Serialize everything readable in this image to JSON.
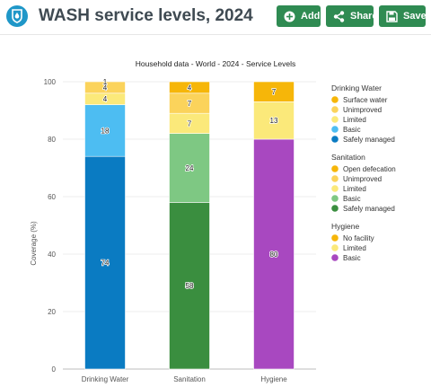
{
  "header": {
    "title": "WASH service levels, 2024",
    "icon": "drop-shield-icon",
    "buttons": [
      {
        "label": "Add",
        "icon": "plus-circle-icon"
      },
      {
        "label": "Share",
        "icon": "share-icon"
      },
      {
        "label": "Save",
        "icon": "floppy-disk-icon"
      }
    ]
  },
  "colors": {
    "brand": "#1f97c8",
    "button": "#2f8b52"
  },
  "chart_data": {
    "type": "bar",
    "stacked": true,
    "title": "Household data - World - 2024 - Service Levels",
    "ylabel": "Coverage (%)",
    "xlabel": "",
    "ylim": [
      0,
      100
    ],
    "yticks": [
      0,
      20,
      40,
      60,
      80,
      100
    ],
    "grid": true,
    "legend_position": "right",
    "categories": [
      "Drinking Water",
      "Sanitation",
      "Hygiene"
    ],
    "stacks": [
      {
        "category": "Drinking Water",
        "legend_title": "Drinking Water",
        "segments": [
          {
            "name": "Safely managed",
            "value": 74,
            "color": "#0a7bc2"
          },
          {
            "name": "Basic",
            "value": 18,
            "color": "#4dbdf2"
          },
          {
            "name": "Limited",
            "value": 4,
            "color": "#fbe97a"
          },
          {
            "name": "Unimproved",
            "value": 4,
            "color": "#fbd35b"
          },
          {
            "name": "Surface water",
            "value": 1,
            "color": "#f6b609"
          }
        ]
      },
      {
        "category": "Sanitation",
        "legend_title": "Sanitation",
        "segments": [
          {
            "name": "Safely managed",
            "value": 58,
            "color": "#3a8e3f"
          },
          {
            "name": "Basic",
            "value": 24,
            "color": "#7ec883"
          },
          {
            "name": "Limited",
            "value": 7,
            "color": "#fbe97a"
          },
          {
            "name": "Unimproved",
            "value": 7,
            "color": "#fbd35b"
          },
          {
            "name": "Open defecation",
            "value": 4,
            "color": "#f6b609"
          }
        ]
      },
      {
        "category": "Hygiene",
        "legend_title": "Hygiene",
        "segments": [
          {
            "name": "Basic",
            "value": 80,
            "color": "#a848c0"
          },
          {
            "name": "Limited",
            "value": 13,
            "color": "#fbe97a"
          },
          {
            "name": "No facility",
            "value": 7,
            "color": "#f6b609"
          }
        ]
      }
    ]
  }
}
